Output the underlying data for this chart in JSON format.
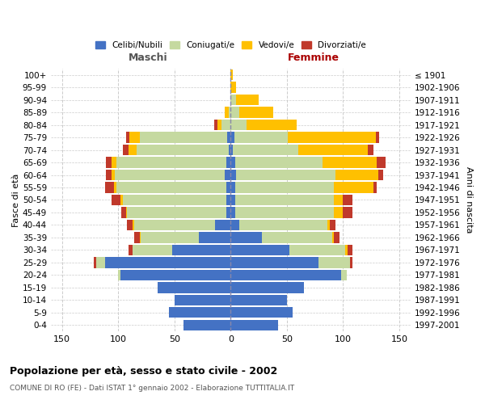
{
  "age_groups": [
    "0-4",
    "5-9",
    "10-14",
    "15-19",
    "20-24",
    "25-29",
    "30-34",
    "35-39",
    "40-44",
    "45-49",
    "50-54",
    "55-59",
    "60-64",
    "65-69",
    "70-74",
    "75-79",
    "80-84",
    "85-89",
    "90-94",
    "95-99",
    "100+"
  ],
  "birth_years": [
    "1997-2001",
    "1992-1996",
    "1987-1991",
    "1982-1986",
    "1977-1981",
    "1972-1976",
    "1967-1971",
    "1962-1966",
    "1957-1961",
    "1952-1956",
    "1947-1951",
    "1942-1946",
    "1937-1941",
    "1932-1936",
    "1927-1931",
    "1922-1926",
    "1917-1921",
    "1912-1916",
    "1907-1911",
    "1902-1906",
    "≤ 1901"
  ],
  "males": {
    "celibi": [
      42,
      55,
      50,
      65,
      98,
      112,
      52,
      28,
      14,
      4,
      4,
      4,
      5,
      4,
      2,
      3,
      0,
      0,
      0,
      0,
      0
    ],
    "coniugati": [
      0,
      0,
      0,
      0,
      2,
      8,
      35,
      52,
      72,
      88,
      92,
      98,
      98,
      98,
      82,
      78,
      8,
      2,
      0,
      0,
      0
    ],
    "vedovi": [
      0,
      0,
      0,
      0,
      0,
      0,
      0,
      1,
      1,
      1,
      2,
      2,
      3,
      4,
      7,
      9,
      4,
      3,
      0,
      0,
      0
    ],
    "divorziati": [
      0,
      0,
      0,
      0,
      0,
      2,
      4,
      5,
      5,
      4,
      8,
      8,
      5,
      5,
      5,
      3,
      3,
      0,
      0,
      0,
      0
    ]
  },
  "females": {
    "nubili": [
      42,
      55,
      50,
      65,
      98,
      78,
      52,
      28,
      8,
      4,
      4,
      4,
      5,
      4,
      2,
      3,
      0,
      0,
      0,
      0,
      0
    ],
    "coniugate": [
      0,
      0,
      0,
      0,
      5,
      28,
      50,
      62,
      78,
      88,
      88,
      88,
      88,
      78,
      58,
      48,
      14,
      8,
      5,
      0,
      0
    ],
    "vedove": [
      0,
      0,
      0,
      0,
      0,
      0,
      2,
      2,
      2,
      8,
      8,
      35,
      38,
      48,
      62,
      78,
      45,
      30,
      20,
      5,
      2
    ],
    "divorziate": [
      0,
      0,
      0,
      0,
      0,
      2,
      4,
      5,
      5,
      8,
      8,
      3,
      5,
      8,
      5,
      3,
      0,
      0,
      0,
      0,
      0
    ]
  },
  "colors": {
    "celibi": "#4472c4",
    "coniugati": "#c5d9a0",
    "vedovi": "#ffc000",
    "divorziati": "#c0392b"
  },
  "title_main": "Popolazione per età, sesso e stato civile - 2002",
  "title_sub": "COMUNE DI RO (FE) - Dati ISTAT 1° gennaio 2002 - Elaborazione TUTTITALIA.IT",
  "xlabel_left": "Maschi",
  "xlabel_right": "Femmine",
  "ylabel_left": "Fasce di età",
  "ylabel_right": "Anni di nascita",
  "xlim": 160,
  "background_color": "#ffffff",
  "grid_color": "#cccccc",
  "legend_labels": [
    "Celibi/Nubili",
    "Coniugati/e",
    "Vedovi/e",
    "Divorziati/e"
  ]
}
